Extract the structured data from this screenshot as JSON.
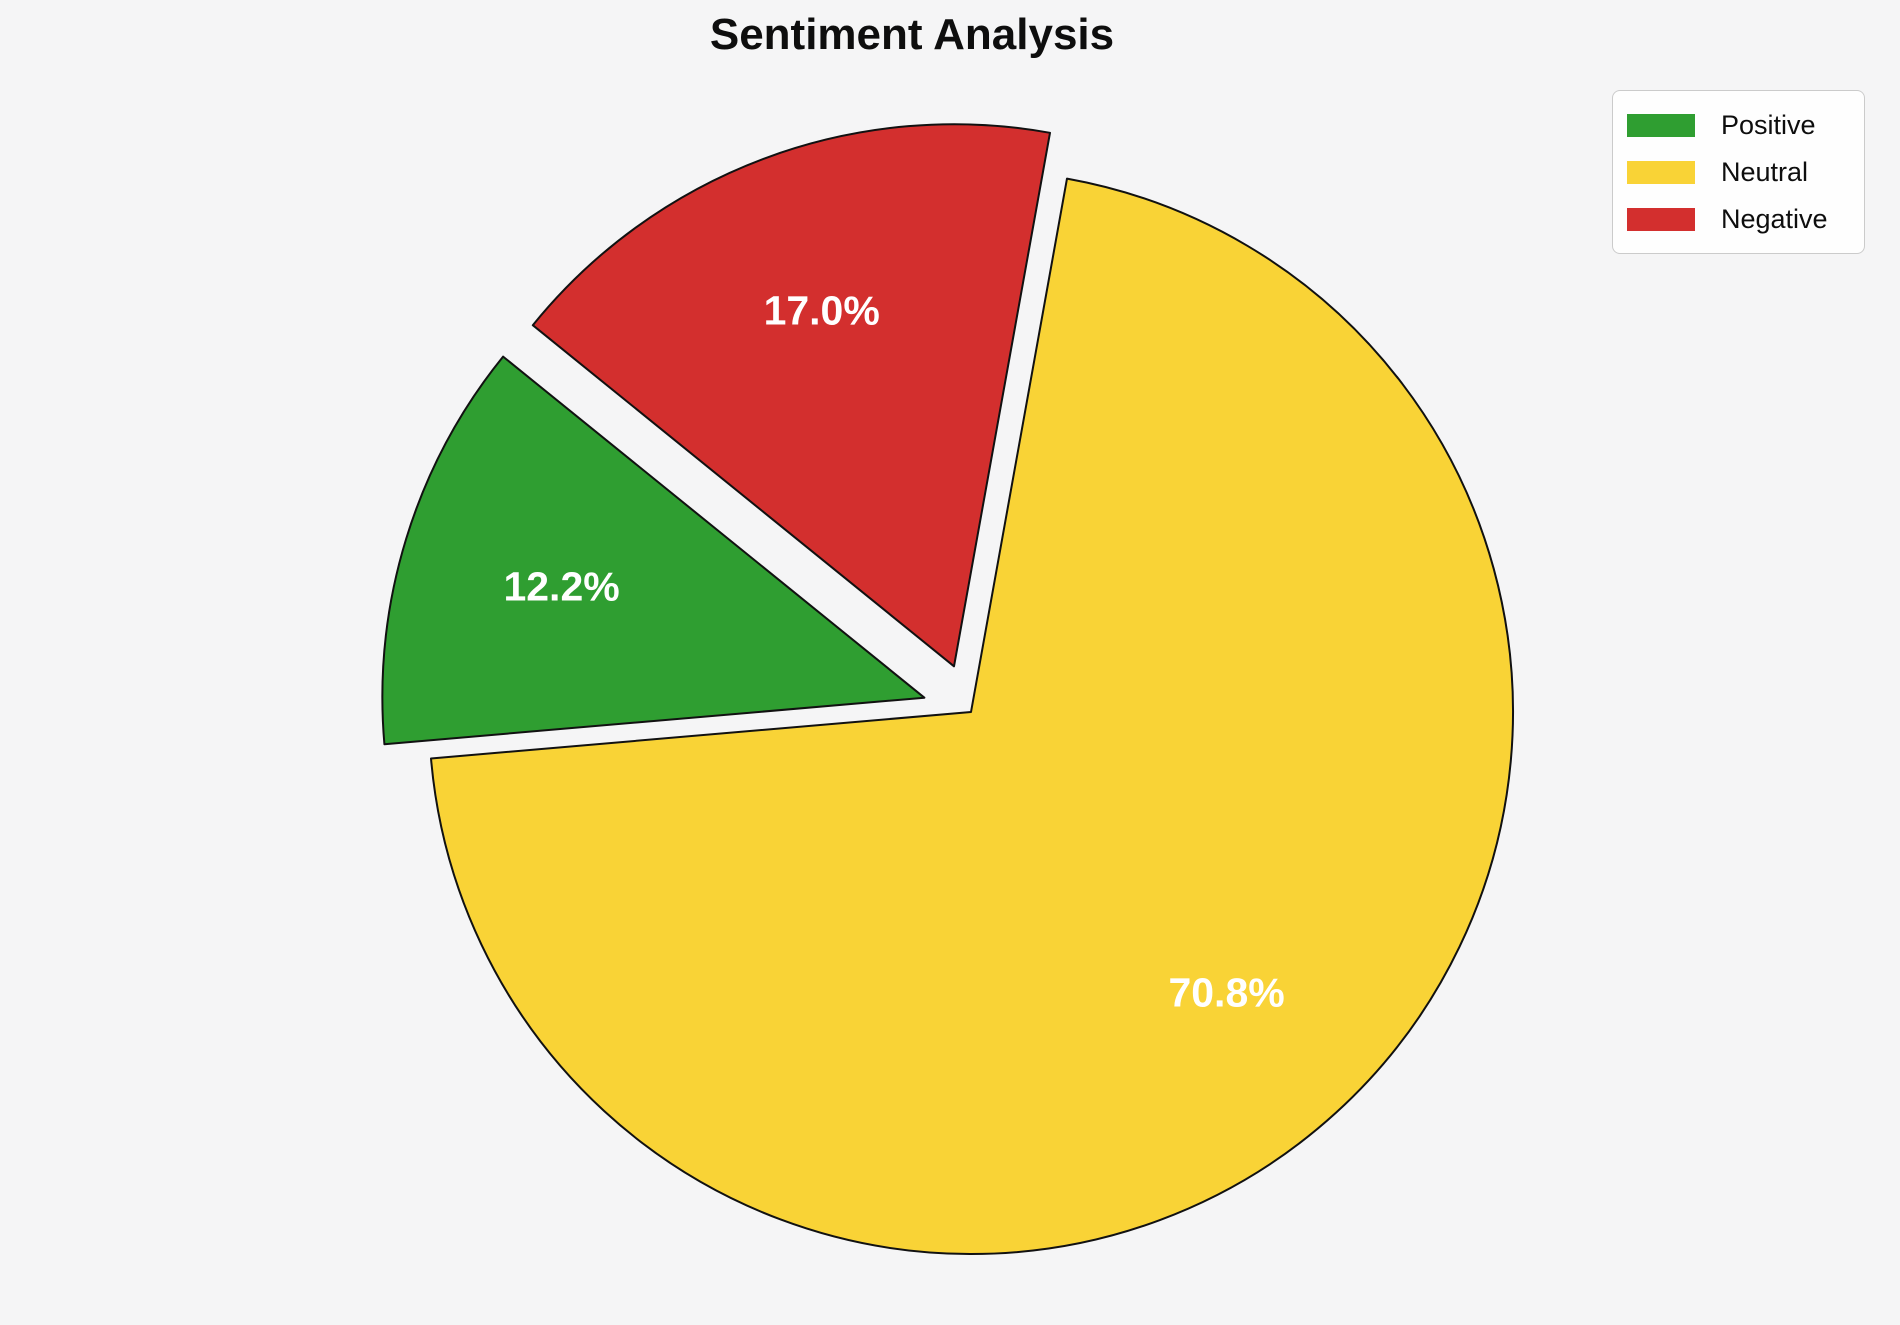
{
  "page": {
    "background_color": "#f5f5f6"
  },
  "chart_data": {
    "type": "pie",
    "title": "Sentiment Analysis",
    "labels": [
      "Positive",
      "Neutral",
      "Negative"
    ],
    "values": [
      12.2,
      70.8,
      17.0
    ],
    "pct_labels": [
      "12.2%",
      "70.8%",
      "17.0%"
    ],
    "colors": [
      "#2f9e31",
      "#f9d336",
      "#d32f2e"
    ],
    "edge_color": "#111111",
    "pct_label_color": "#ffffff",
    "startangle": 141,
    "direction": "counterclockwise",
    "explode": [
      0.09,
      0,
      0.09
    ],
    "labeldistance": 0.7,
    "legend": {
      "position": "upper right",
      "entries": [
        "Positive",
        "Neutral",
        "Negative"
      ]
    }
  }
}
